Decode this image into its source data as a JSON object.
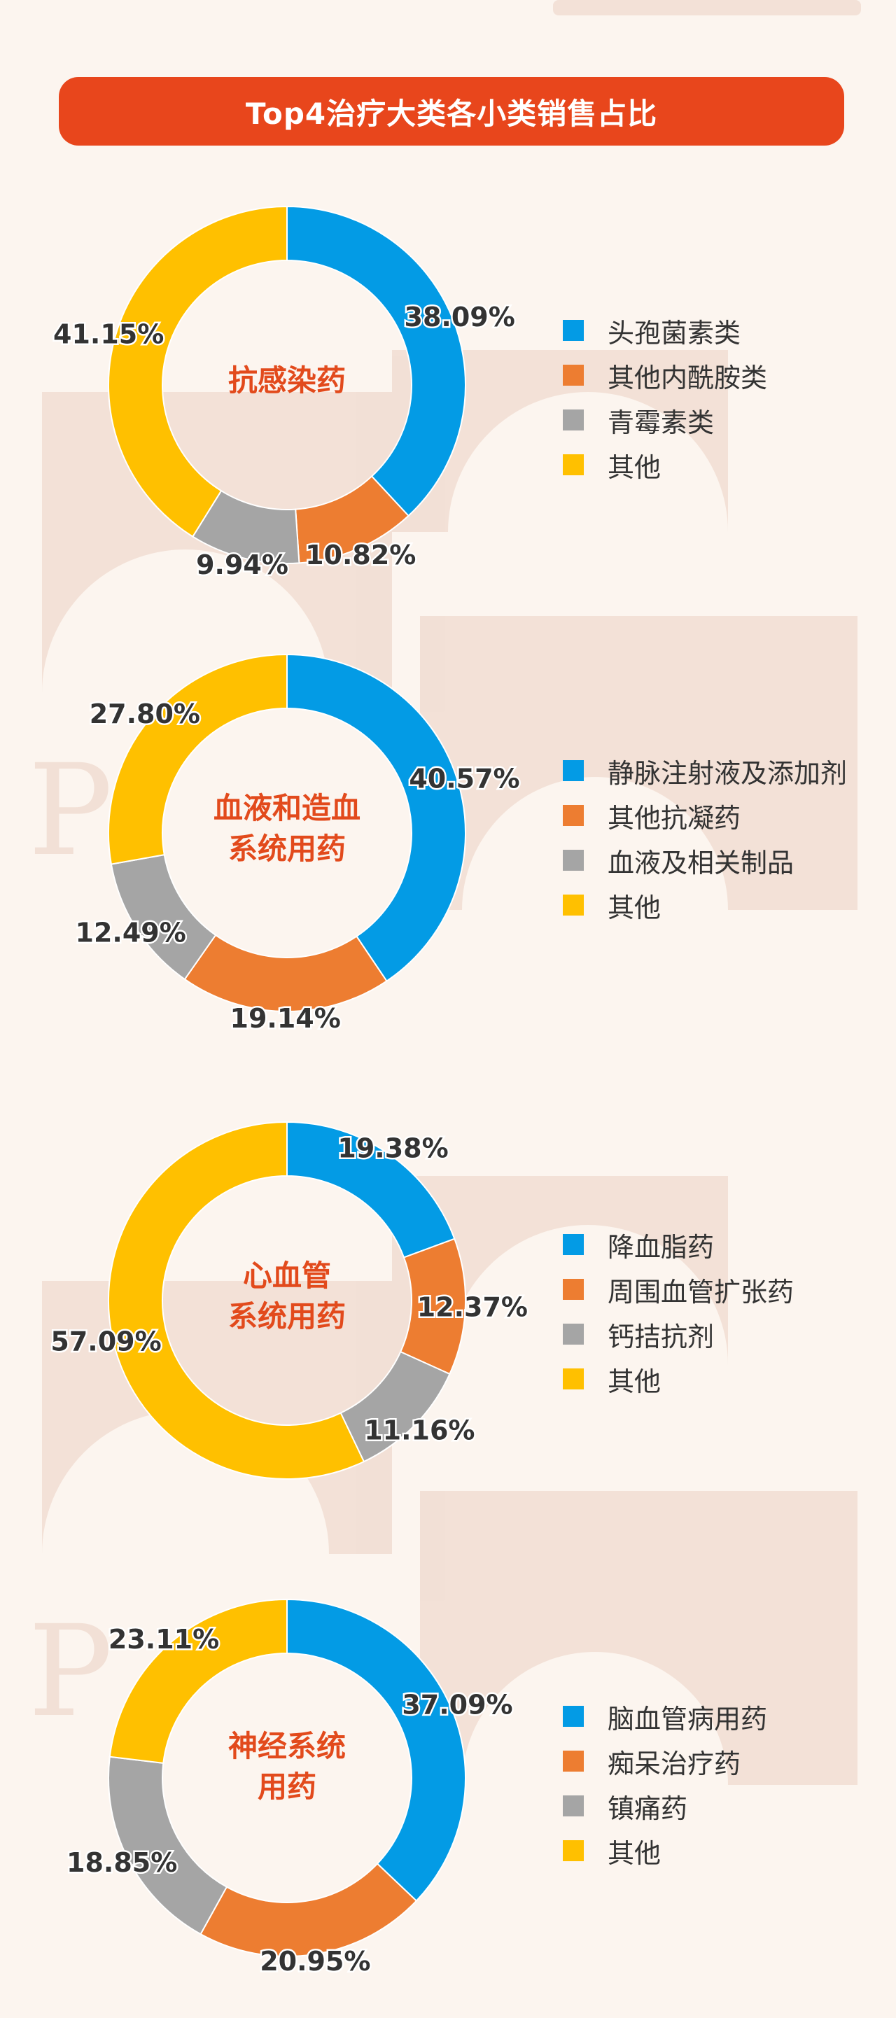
{
  "header": {
    "title": "Top4治疗大类各小类销售占比"
  },
  "colors": {
    "header_bg": "#e8461c",
    "center_label": "#e24a1c",
    "blue": "#039be5",
    "orange": "#ed7d31",
    "gray": "#a5a5a5",
    "yellow": "#ffc000",
    "value_text": "#333333"
  },
  "chart_data": [
    {
      "type": "pie",
      "donut": true,
      "center_label": [
        "抗感染药"
      ],
      "legend_position": "right",
      "slices": [
        {
          "name": "头孢菌素类",
          "value": 38.09,
          "label": "38.09%",
          "color": "#039be5"
        },
        {
          "name": "其他内酰胺类",
          "value": 10.82,
          "label": "10.82%",
          "color": "#ed7d31"
        },
        {
          "name": "青霉素类",
          "value": 9.94,
          "label": "9.94%",
          "color": "#a5a5a5"
        },
        {
          "name": "其他",
          "value": 41.15,
          "label": "41.15%",
          "color": "#ffc000"
        }
      ]
    },
    {
      "type": "pie",
      "donut": true,
      "center_label": [
        "血液和造血",
        "系统用药"
      ],
      "legend_position": "right",
      "slices": [
        {
          "name": "静脉注射液及添加剂",
          "value": 40.57,
          "label": "40.57%",
          "color": "#039be5"
        },
        {
          "name": "其他抗凝药",
          "value": 19.14,
          "label": "19.14%",
          "color": "#ed7d31"
        },
        {
          "name": "血液及相关制品",
          "value": 12.49,
          "label": "12.49%",
          "color": "#a5a5a5"
        },
        {
          "name": "其他",
          "value": 27.8,
          "label": "27.80%",
          "color": "#ffc000"
        }
      ]
    },
    {
      "type": "pie",
      "donut": true,
      "center_label": [
        "心血管",
        "系统用药"
      ],
      "legend_position": "right",
      "slices": [
        {
          "name": "降血脂药",
          "value": 19.38,
          "label": "19.38%",
          "color": "#039be5"
        },
        {
          "name": "周围血管扩张药",
          "value": 12.37,
          "label": "12.37%",
          "color": "#ed7d31"
        },
        {
          "name": "钙拮抗剂",
          "value": 11.16,
          "label": "11.16%",
          "color": "#a5a5a5"
        },
        {
          "name": "其他",
          "value": 57.09,
          "label": "57.09%",
          "color": "#ffc000"
        }
      ]
    },
    {
      "type": "pie",
      "donut": true,
      "center_label": [
        "神经系统",
        "用药"
      ],
      "legend_position": "right",
      "slices": [
        {
          "name": "脑血管病用药",
          "value": 37.09,
          "label": "37.09%",
          "color": "#039be5"
        },
        {
          "name": "痴呆治疗药",
          "value": 20.95,
          "label": "20.95%",
          "color": "#ed7d31"
        },
        {
          "name": "镇痛药",
          "value": 18.85,
          "label": "18.85%",
          "color": "#a5a5a5"
        },
        {
          "name": "其他",
          "value": 23.11,
          "label": "23.11%",
          "color": "#ffc000"
        }
      ]
    }
  ]
}
